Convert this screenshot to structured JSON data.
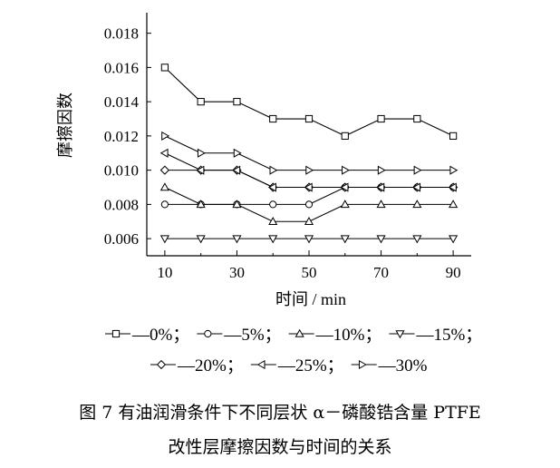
{
  "chart_data": {
    "type": "line",
    "xlabel": "时间 / min",
    "ylabel": "摩擦因数",
    "x": [
      10,
      20,
      30,
      40,
      50,
      60,
      70,
      80,
      90
    ],
    "xticks": [
      10,
      30,
      50,
      70,
      90
    ],
    "xlim": [
      5,
      95
    ],
    "yticks": [
      0.006,
      0.008,
      0.01,
      0.012,
      0.014,
      0.016,
      0.018
    ],
    "ytick_labels": [
      "0.006",
      "0.008",
      "0.010",
      "0.012",
      "0.014",
      "0.016",
      "0.018"
    ],
    "ylim": [
      0.005,
      0.0192
    ],
    "grid": false,
    "legend_position": "below",
    "series": [
      {
        "name": "0%",
        "marker": "square",
        "values": [
          0.016,
          0.014,
          0.014,
          0.013,
          0.013,
          0.012,
          0.013,
          0.013,
          0.012
        ]
      },
      {
        "name": "5%",
        "marker": "circle",
        "values": [
          0.008,
          0.008,
          0.008,
          0.008,
          0.008,
          0.009,
          0.009,
          0.009,
          0.009
        ]
      },
      {
        "name": "10%",
        "marker": "triangle-up",
        "values": [
          0.009,
          0.008,
          0.008,
          0.007,
          0.007,
          0.008,
          0.008,
          0.008,
          0.008
        ]
      },
      {
        "name": "15%",
        "marker": "triangle-down",
        "values": [
          0.006,
          0.006,
          0.006,
          0.006,
          0.006,
          0.006,
          0.006,
          0.006,
          0.006
        ]
      },
      {
        "name": "20%",
        "marker": "diamond",
        "values": [
          0.01,
          0.01,
          0.01,
          0.009,
          0.009,
          0.009,
          0.009,
          0.009,
          0.009
        ]
      },
      {
        "name": "25%",
        "marker": "triangle-left",
        "values": [
          0.011,
          0.01,
          0.01,
          0.009,
          0.009,
          0.009,
          0.009,
          0.009,
          0.009
        ]
      },
      {
        "name": "30%",
        "marker": "triangle-right",
        "values": [
          0.012,
          0.011,
          0.011,
          0.01,
          0.01,
          0.01,
          0.01,
          0.01,
          0.01
        ]
      }
    ],
    "legend_rows": [
      [
        "0%",
        "5%",
        "10%",
        "15%"
      ],
      [
        "20%",
        "25%",
        "30%"
      ]
    ]
  },
  "caption": {
    "line1": "图 7   有油润滑条件下不同层状 α－磷酸锆含量 PTFE",
    "line2": "改性层摩擦因数与时间的关系"
  }
}
